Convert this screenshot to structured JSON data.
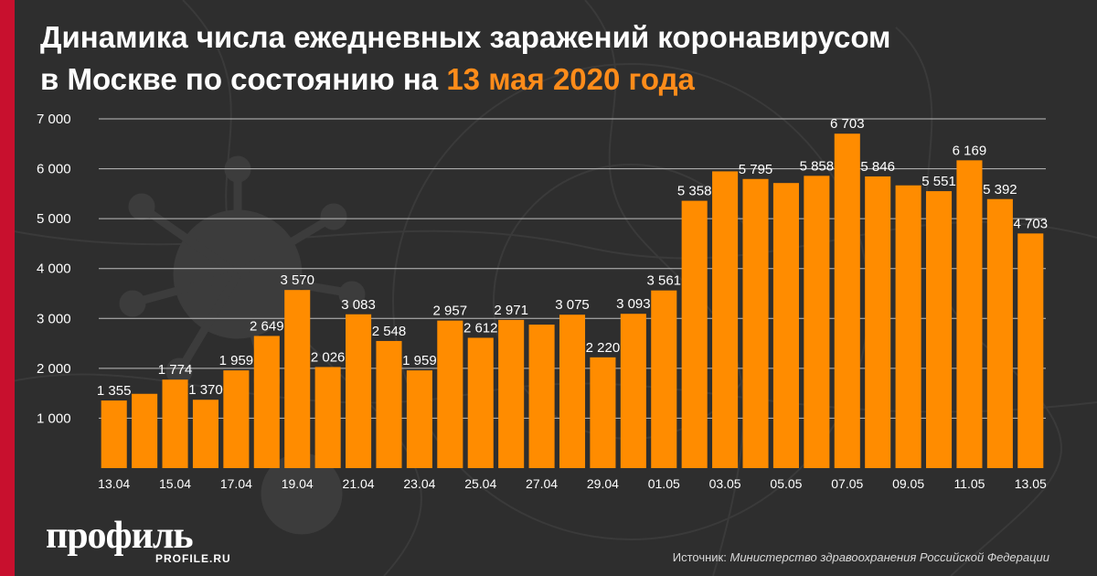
{
  "header": {
    "title_line1": "Динамика числа ежедневных заражений коронавирусом",
    "title_line2_prefix": "в Москве по состоянию на ",
    "title_line2_highlight": "13 мая 2020 года"
  },
  "branding": {
    "logo_text": "профиль",
    "logo_subtext": "PROFILE.RU"
  },
  "footer": {
    "source_label": "Источник: ",
    "source_text": "Министерство здравоохранения Российской Федерации"
  },
  "colors": {
    "background": "#2e2e2e",
    "bar": "#ff8c00",
    "accent": "#c8102e",
    "highlight": "#ff8c1a",
    "grid": "#bdbdbd",
    "text": "#ffffff"
  },
  "chart_data": {
    "type": "bar",
    "title": "Динамика числа ежедневных заражений коронавирусом в Москве по состоянию на 13 мая 2020 года",
    "xlabel": "",
    "ylabel": "",
    "ylim": [
      0,
      7000
    ],
    "y_ticks": [
      1000,
      2000,
      3000,
      4000,
      5000,
      6000,
      7000
    ],
    "y_tick_labels": [
      "1 000",
      "2 000",
      "3 000",
      "4 000",
      "5 000",
      "6 000",
      "7 000"
    ],
    "grid": true,
    "categories": [
      "13.04",
      "14.04",
      "15.04",
      "16.04",
      "17.04",
      "18.04",
      "19.04",
      "20.04",
      "21.04",
      "22.04",
      "23.04",
      "24.04",
      "25.04",
      "26.04",
      "27.04",
      "28.04",
      "29.04",
      "30.04",
      "01.05",
      "02.05",
      "03.05",
      "04.05",
      "05.05",
      "06.05",
      "07.05",
      "08.05",
      "09.05",
      "10.05",
      "11.05",
      "12.05",
      "13.05"
    ],
    "x_tick_labels": [
      "13.04",
      "",
      "15.04",
      "",
      "17.04",
      "",
      "19.04",
      "",
      "21.04",
      "",
      "23.04",
      "",
      "25.04",
      "",
      "27.04",
      "",
      "29.04",
      "",
      "01.05",
      "",
      "03.05",
      "",
      "05.05",
      "",
      "07.05",
      "",
      "09.05",
      "",
      "11.05",
      "",
      "13.05"
    ],
    "values": [
      1355,
      1489,
      1774,
      1370,
      1959,
      2649,
      3570,
      2026,
      3083,
      2548,
      1959,
      2957,
      2612,
      2971,
      2876,
      3075,
      2220,
      3093,
      3561,
      5358,
      5948,
      5795,
      5714,
      5858,
      6703,
      5846,
      5667,
      5551,
      6169,
      5392,
      4703
    ],
    "value_labels": [
      "1 355",
      "",
      "1 774",
      "1 370",
      "1 959",
      "2 649",
      "3 570",
      "2 026",
      "3 083",
      "2 548",
      "1 959",
      "2 957",
      "2 612",
      "2 971",
      "",
      "3 075",
      "2 220",
      "3 093",
      "3 561",
      "5 358",
      "",
      "5 795",
      "",
      "5 858",
      "6 703",
      "5 846",
      "",
      "5 551",
      "6 169",
      "5 392",
      "4 703"
    ]
  }
}
